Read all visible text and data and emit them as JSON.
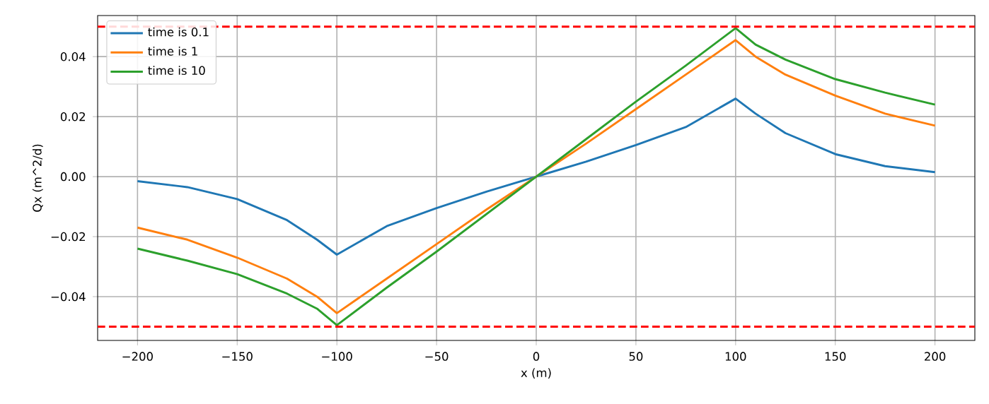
{
  "chart_data": {
    "type": "line",
    "xlabel": "x (m)",
    "ylabel": "Qx (m^2/d)",
    "x": [
      -200,
      -175,
      -150,
      -125,
      -110,
      -100,
      -75,
      -50,
      -25,
      0,
      25,
      50,
      75,
      100,
      110,
      125,
      150,
      175,
      200
    ],
    "series": [
      {
        "name": "time is 0.1",
        "color": "#1f77b4",
        "values": [
          -0.0015,
          -0.0035,
          -0.0075,
          -0.0145,
          -0.021,
          -0.026,
          -0.0165,
          -0.0105,
          -0.005,
          0,
          0.005,
          0.0105,
          0.0165,
          0.026,
          0.021,
          0.0145,
          0.0075,
          0.0035,
          0.0015
        ]
      },
      {
        "name": "time is 1",
        "color": "#ff7f0e",
        "values": [
          -0.017,
          -0.021,
          -0.027,
          -0.034,
          -0.04,
          -0.0455,
          -0.034,
          -0.0225,
          -0.011,
          0,
          0.011,
          0.0225,
          0.034,
          0.0455,
          0.04,
          0.034,
          0.027,
          0.021,
          0.017
        ]
      },
      {
        "name": "time is 10",
        "color": "#2ca02c",
        "values": [
          -0.024,
          -0.028,
          -0.0325,
          -0.039,
          -0.044,
          -0.0495,
          -0.037,
          -0.025,
          -0.0125,
          0,
          0.0125,
          0.025,
          0.037,
          0.0495,
          0.044,
          0.039,
          0.0325,
          0.028,
          0.024
        ]
      }
    ],
    "xlim": [
      -220,
      220
    ],
    "ylim": [
      -0.0546,
      0.0537
    ],
    "xticks": [
      {
        "value": -200,
        "label": "−200"
      },
      {
        "value": -150,
        "label": "−150"
      },
      {
        "value": -100,
        "label": "−100"
      },
      {
        "value": -50,
        "label": "−50"
      },
      0,
      50,
      100,
      150,
      200
    ],
    "yticks": [
      {
        "value": -0.04,
        "label": "−0.04"
      },
      {
        "value": -0.02,
        "label": "−0.02"
      },
      {
        "value": 0,
        "label": "0.00"
      },
      {
        "value": 0.02,
        "label": "0.02"
      },
      {
        "value": 0.04,
        "label": "0.04"
      }
    ],
    "ref_lines": [
      {
        "axis": "y",
        "value": 0.05,
        "color": "#ff0000",
        "line_style": "dashed"
      },
      {
        "axis": "y",
        "value": -0.05,
        "color": "#ff0000",
        "line_style": "dashed"
      }
    ],
    "grid": true,
    "legend": "top left",
    "marker": "none",
    "line_style": "solid"
  }
}
